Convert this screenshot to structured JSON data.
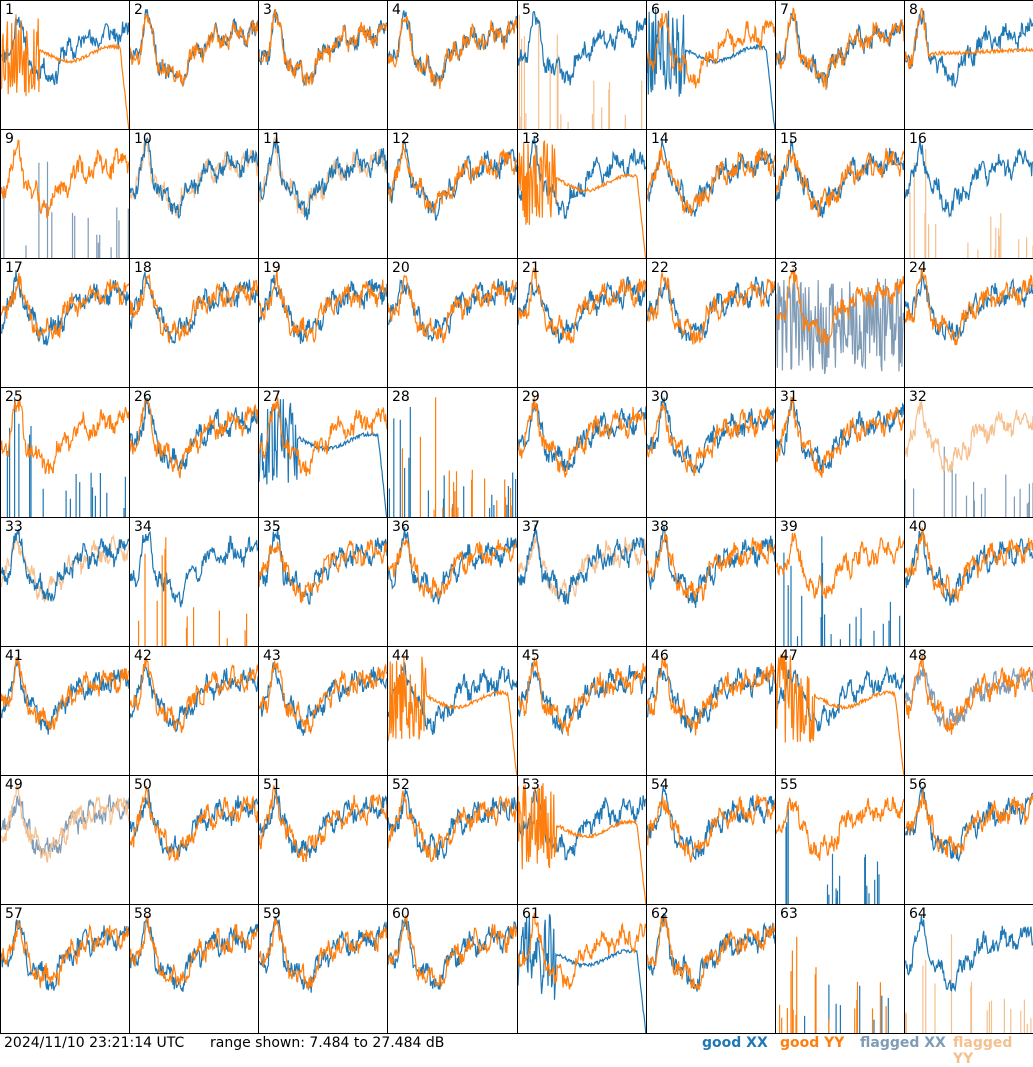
{
  "footer": {
    "timestamp": "2024/11/10 23:21:14 UTC",
    "range_text": "range shown: 7.484 to 27.484 dB",
    "legend": [
      "good XX",
      "good YY",
      "flagged XX",
      "flagged YY"
    ]
  },
  "colors": {
    "good_xx": "#1f77b4",
    "good_yy": "#ff7f0e",
    "flagged_xx": "#7f9bb6",
    "flagged_yy": "#f6c08e"
  },
  "chart_data": {
    "type": "line",
    "y_unit": "dB",
    "ylim": [
      7.484,
      27.484
    ],
    "grid_rows": 8,
    "grid_cols": 8,
    "panels": [
      {
        "label": "1",
        "xx": "good",
        "yy": "good",
        "xx_shape": "normal",
        "yy_shape": "rolloff"
      },
      {
        "label": "2",
        "xx": "good",
        "yy": "good",
        "xx_shape": "normal",
        "yy_shape": "normal"
      },
      {
        "label": "3",
        "xx": "good",
        "yy": "good",
        "xx_shape": "normal",
        "yy_shape": "normal"
      },
      {
        "label": "4",
        "xx": "good",
        "yy": "good",
        "xx_shape": "normal",
        "yy_shape": "normal"
      },
      {
        "label": "5",
        "xx": "good",
        "yy": "flagged",
        "xx_shape": "normal",
        "yy_shape": "spikes"
      },
      {
        "label": "6",
        "xx": "good",
        "yy": "good",
        "xx_shape": "rolloff",
        "yy_shape": "normal"
      },
      {
        "label": "7",
        "xx": "good",
        "yy": "good",
        "xx_shape": "normal",
        "yy_shape": "normal"
      },
      {
        "label": "8",
        "xx": "good",
        "yy": "good",
        "xx_shape": "normal",
        "yy_shape": "flat"
      },
      {
        "label": "9",
        "xx": "flagged",
        "yy": "good",
        "xx_shape": "spikes",
        "yy_shape": "normal"
      },
      {
        "label": "10",
        "xx": "good",
        "yy": "flagged",
        "xx_shape": "normal",
        "yy_shape": "normal"
      },
      {
        "label": "11",
        "xx": "good",
        "yy": "flagged",
        "xx_shape": "normal",
        "yy_shape": "normal"
      },
      {
        "label": "12",
        "xx": "good",
        "yy": "good",
        "xx_shape": "normal",
        "yy_shape": "normal"
      },
      {
        "label": "13",
        "xx": "good",
        "yy": "good",
        "xx_shape": "normal",
        "yy_shape": "rolloff"
      },
      {
        "label": "14",
        "xx": "good",
        "yy": "good",
        "xx_shape": "normal",
        "yy_shape": "normal"
      },
      {
        "label": "15",
        "xx": "good",
        "yy": "good",
        "xx_shape": "normal",
        "yy_shape": "normal"
      },
      {
        "label": "16",
        "xx": "good",
        "yy": "flagged",
        "xx_shape": "normal",
        "yy_shape": "spikes"
      },
      {
        "label": "17",
        "xx": "good",
        "yy": "good",
        "xx_shape": "normal",
        "yy_shape": "normal"
      },
      {
        "label": "18",
        "xx": "good",
        "yy": "good",
        "xx_shape": "normal",
        "yy_shape": "normal"
      },
      {
        "label": "19",
        "xx": "good",
        "yy": "good",
        "xx_shape": "normal",
        "yy_shape": "normal"
      },
      {
        "label": "20",
        "xx": "good",
        "yy": "good",
        "xx_shape": "normal",
        "yy_shape": "normal"
      },
      {
        "label": "21",
        "xx": "good",
        "yy": "good",
        "xx_shape": "normal",
        "yy_shape": "normal"
      },
      {
        "label": "22",
        "xx": "good",
        "yy": "good",
        "xx_shape": "normal",
        "yy_shape": "normal"
      },
      {
        "label": "23",
        "xx": "flagged",
        "yy": "good",
        "xx_shape": "noisy",
        "yy_shape": "normal"
      },
      {
        "label": "24",
        "xx": "good",
        "yy": "good",
        "xx_shape": "normal",
        "yy_shape": "normal"
      },
      {
        "label": "25",
        "xx": "good",
        "yy": "good",
        "xx_shape": "spikes",
        "yy_shape": "normal"
      },
      {
        "label": "26",
        "xx": "good",
        "yy": "good",
        "xx_shape": "normal",
        "yy_shape": "normal"
      },
      {
        "label": "27",
        "xx": "good",
        "yy": "good",
        "xx_shape": "rolloff",
        "yy_shape": "normal"
      },
      {
        "label": "28",
        "xx": "good",
        "yy": "good",
        "xx_shape": "spikes",
        "yy_shape": "spikes"
      },
      {
        "label": "29",
        "xx": "good",
        "yy": "good",
        "xx_shape": "normal",
        "yy_shape": "normal"
      },
      {
        "label": "30",
        "xx": "good",
        "yy": "good",
        "xx_shape": "normal",
        "yy_shape": "normal"
      },
      {
        "label": "31",
        "xx": "good",
        "yy": "good",
        "xx_shape": "normal",
        "yy_shape": "normal"
      },
      {
        "label": "32",
        "xx": "flagged",
        "yy": "flagged",
        "xx_shape": "spikes",
        "yy_shape": "normal"
      },
      {
        "label": "33",
        "xx": "good",
        "yy": "flagged",
        "xx_shape": "normal",
        "yy_shape": "normal"
      },
      {
        "label": "34",
        "xx": "good",
        "yy": "good",
        "xx_shape": "normal",
        "yy_shape": "spikes"
      },
      {
        "label": "35",
        "xx": "good",
        "yy": "good",
        "xx_shape": "normal",
        "yy_shape": "normal"
      },
      {
        "label": "36",
        "xx": "good",
        "yy": "good",
        "xx_shape": "normal",
        "yy_shape": "normal"
      },
      {
        "label": "37",
        "xx": "good",
        "yy": "flagged",
        "xx_shape": "normal",
        "yy_shape": "normal"
      },
      {
        "label": "38",
        "xx": "good",
        "yy": "good",
        "xx_shape": "normal",
        "yy_shape": "normal"
      },
      {
        "label": "39",
        "xx": "good",
        "yy": "good",
        "xx_shape": "spikes",
        "yy_shape": "normal"
      },
      {
        "label": "40",
        "xx": "good",
        "yy": "good",
        "xx_shape": "normal",
        "yy_shape": "normal"
      },
      {
        "label": "41",
        "xx": "good",
        "yy": "good",
        "xx_shape": "normal",
        "yy_shape": "normal"
      },
      {
        "label": "42",
        "xx": "good",
        "yy": "good",
        "xx_shape": "normal",
        "yy_shape": "normal"
      },
      {
        "label": "43",
        "xx": "good",
        "yy": "good",
        "xx_shape": "normal",
        "yy_shape": "normal"
      },
      {
        "label": "44",
        "xx": "good",
        "yy": "good",
        "xx_shape": "normal",
        "yy_shape": "rolloff"
      },
      {
        "label": "45",
        "xx": "good",
        "yy": "good",
        "xx_shape": "normal",
        "yy_shape": "normal"
      },
      {
        "label": "46",
        "xx": "good",
        "yy": "good",
        "xx_shape": "normal",
        "yy_shape": "normal"
      },
      {
        "label": "47",
        "xx": "good",
        "yy": "good",
        "xx_shape": "normal",
        "yy_shape": "rolloff"
      },
      {
        "label": "48",
        "xx": "flagged",
        "yy": "good",
        "xx_shape": "normal",
        "yy_shape": "normal"
      },
      {
        "label": "49",
        "xx": "flagged",
        "yy": "flagged",
        "xx_shape": "normal",
        "yy_shape": "normal"
      },
      {
        "label": "50",
        "xx": "good",
        "yy": "good",
        "xx_shape": "normal",
        "yy_shape": "normal"
      },
      {
        "label": "51",
        "xx": "good",
        "yy": "good",
        "xx_shape": "normal",
        "yy_shape": "normal"
      },
      {
        "label": "52",
        "xx": "good",
        "yy": "good",
        "xx_shape": "normal",
        "yy_shape": "normal"
      },
      {
        "label": "53",
        "xx": "good",
        "yy": "good",
        "xx_shape": "normal",
        "yy_shape": "rolloff"
      },
      {
        "label": "54",
        "xx": "good",
        "yy": "good",
        "xx_shape": "normal",
        "yy_shape": "normal"
      },
      {
        "label": "55",
        "xx": "good",
        "yy": "good",
        "xx_shape": "spikes",
        "yy_shape": "normal"
      },
      {
        "label": "56",
        "xx": "good",
        "yy": "good",
        "xx_shape": "normal",
        "yy_shape": "normal"
      },
      {
        "label": "57",
        "xx": "good",
        "yy": "good",
        "xx_shape": "normal",
        "yy_shape": "normal"
      },
      {
        "label": "58",
        "xx": "good",
        "yy": "good",
        "xx_shape": "normal",
        "yy_shape": "normal"
      },
      {
        "label": "59",
        "xx": "good",
        "yy": "good",
        "xx_shape": "normal",
        "yy_shape": "normal"
      },
      {
        "label": "60",
        "xx": "good",
        "yy": "good",
        "xx_shape": "normal",
        "yy_shape": "normal"
      },
      {
        "label": "61",
        "xx": "good",
        "yy": "good",
        "xx_shape": "rolloff",
        "yy_shape": "normal"
      },
      {
        "label": "62",
        "xx": "good",
        "yy": "good",
        "xx_shape": "normal",
        "yy_shape": "normal"
      },
      {
        "label": "63",
        "xx": "good",
        "yy": "good",
        "xx_shape": "spikes",
        "yy_shape": "spikes"
      },
      {
        "label": "64",
        "xx": "good",
        "yy": "flagged",
        "xx_shape": "normal",
        "yy_shape": "spikes"
      }
    ]
  }
}
